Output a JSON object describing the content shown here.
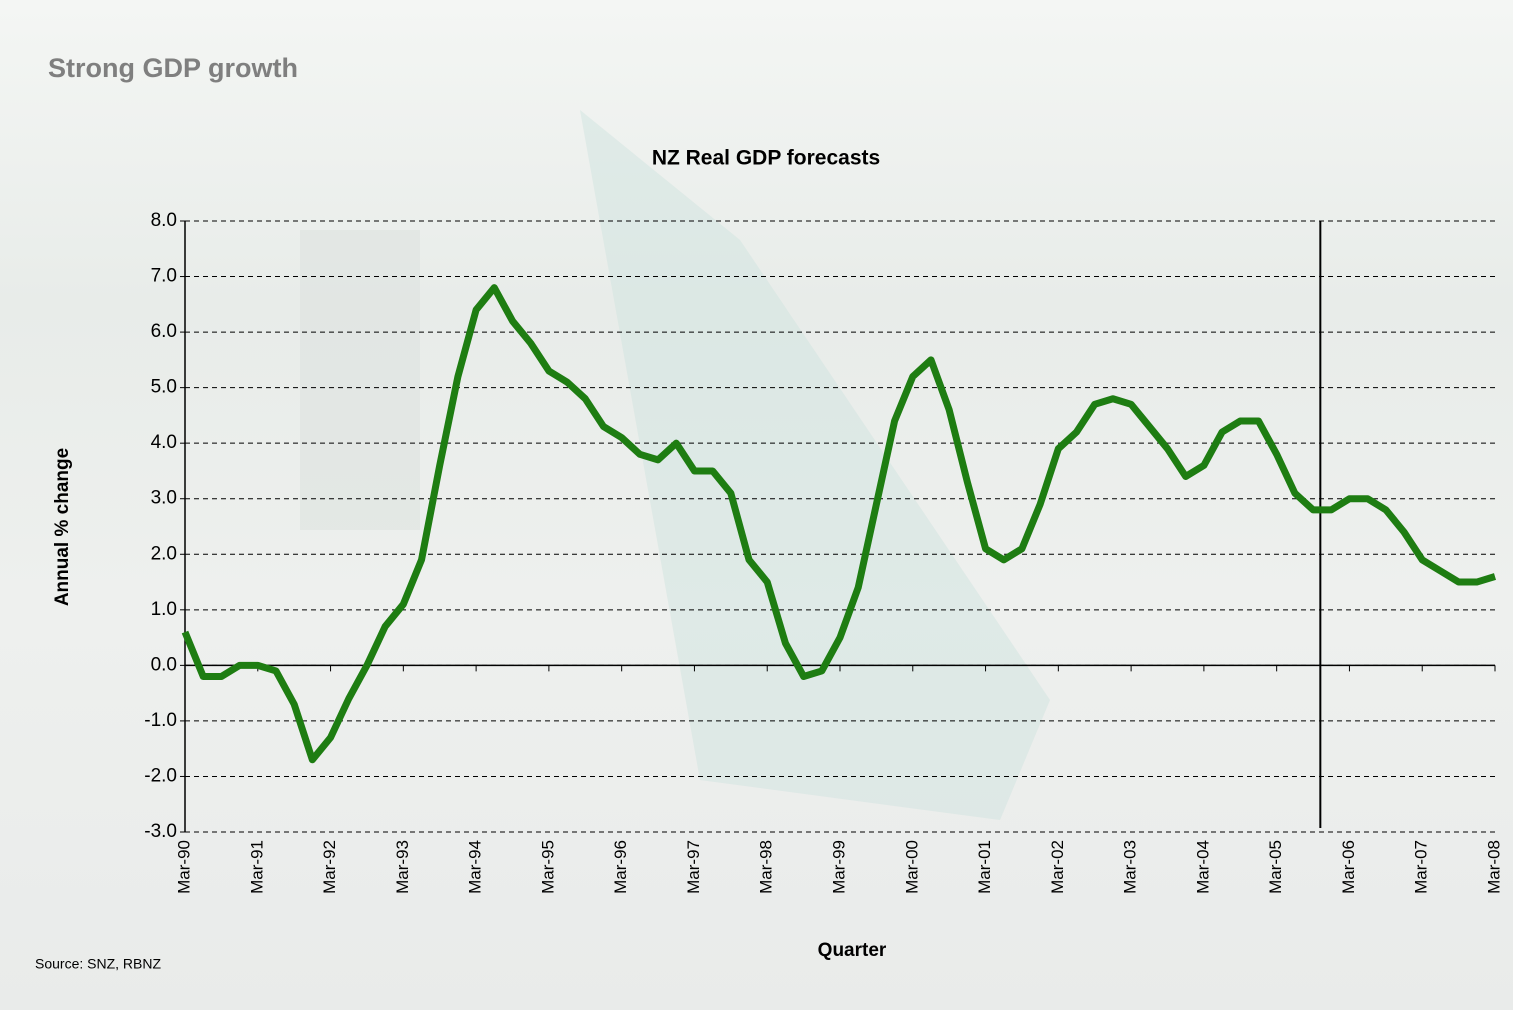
{
  "header": {
    "title": "Strong GDP growth"
  },
  "source": "Source: SNZ, RBNZ",
  "chart_data": {
    "type": "line",
    "title": "NZ Real GDP forecasts",
    "x_label": "Quarter",
    "y_label": "Annual % change",
    "categories": [
      "Mar-90",
      null,
      null,
      null,
      "Mar-91",
      null,
      null,
      null,
      "Mar-92",
      null,
      null,
      null,
      "Mar-93",
      null,
      null,
      null,
      "Mar-94",
      null,
      null,
      null,
      "Mar-95",
      null,
      null,
      null,
      "Mar-96",
      null,
      null,
      null,
      "Mar-97",
      null,
      null,
      null,
      "Mar-98",
      null,
      null,
      null,
      "Mar-99",
      null,
      null,
      null,
      "Mar-00",
      null,
      null,
      null,
      "Mar-01",
      null,
      null,
      null,
      "Mar-02",
      null,
      null,
      null,
      "Mar-03",
      null,
      null,
      null,
      "Mar-04",
      null,
      null,
      null,
      "Mar-05",
      null,
      null,
      null,
      "Mar-06",
      null,
      null,
      null,
      "Mar-07",
      null,
      null,
      null,
      "Mar-08"
    ],
    "values": [
      0.6,
      -0.2,
      -0.2,
      0.0,
      0.0,
      -0.1,
      -0.7,
      -1.7,
      -1.3,
      -0.6,
      0.0,
      0.7,
      1.1,
      1.9,
      3.6,
      5.2,
      6.4,
      6.8,
      6.2,
      5.8,
      5.3,
      5.1,
      4.8,
      4.3,
      4.1,
      3.8,
      3.7,
      4.0,
      3.5,
      3.5,
      3.1,
      1.9,
      1.5,
      0.4,
      -0.2,
      -0.1,
      0.5,
      1.4,
      2.9,
      4.4,
      5.2,
      5.5,
      4.6,
      3.3,
      2.1,
      1.9,
      2.1,
      2.9,
      3.9,
      4.2,
      4.7,
      4.8,
      4.7,
      4.3,
      3.9,
      3.4,
      3.6,
      4.2,
      4.4,
      4.4,
      3.8,
      3.1,
      2.8,
      2.8,
      3.0,
      3.0,
      2.8,
      2.4,
      1.9,
      1.7,
      1.5,
      1.5,
      1.6
    ],
    "color": "#1e7d12",
    "forecast_line_x": 62.4,
    "ylim": [
      -3,
      8
    ],
    "yticks": [
      {
        "value": -3,
        "label": "-3.0"
      },
      {
        "value": -2,
        "label": "-2.0"
      },
      {
        "value": -1,
        "label": "-1.0"
      },
      {
        "value": 0,
        "label": "0.0"
      },
      {
        "value": 1,
        "label": "1.0"
      },
      {
        "value": 2,
        "label": "2.0"
      },
      {
        "value": 3,
        "label": "3.0"
      },
      {
        "value": 4,
        "label": "4.0"
      },
      {
        "value": 5,
        "label": "5.0"
      },
      {
        "value": 6,
        "label": "6.0"
      },
      {
        "value": 7,
        "label": "7.0"
      },
      {
        "value": 8,
        "label": "8.0"
      }
    ],
    "grid": true
  }
}
